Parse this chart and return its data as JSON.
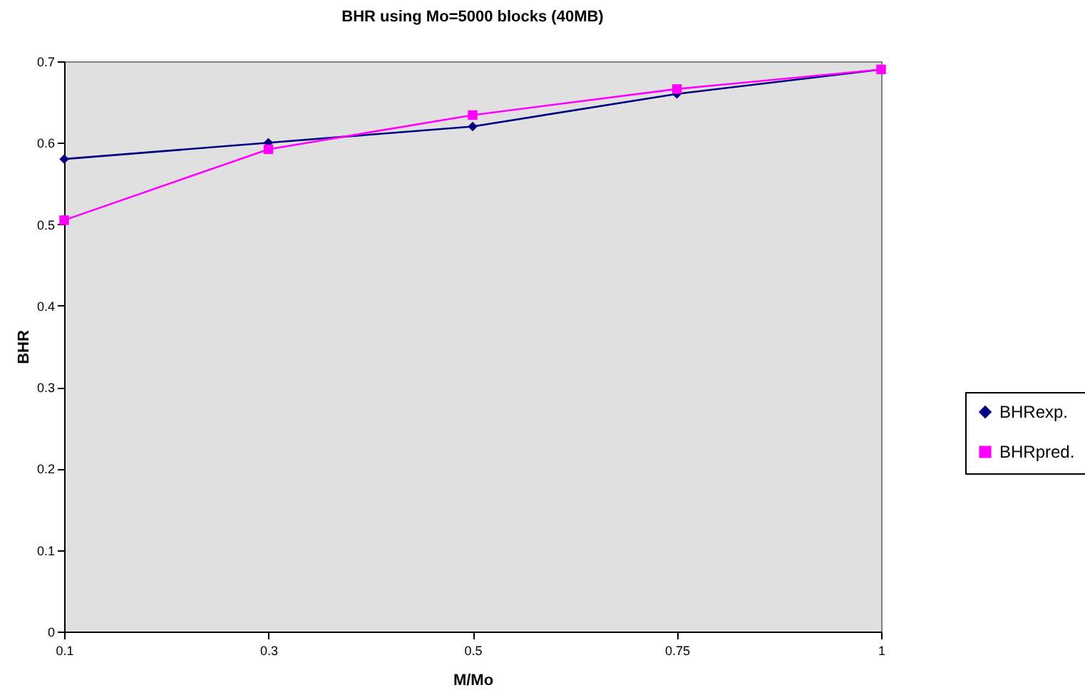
{
  "chart_data": {
    "type": "line",
    "title": "BHR using Mo=5000 blocks (40MB)",
    "xlabel": "M/Mo",
    "ylabel": "BHR",
    "categories": [
      "0.1",
      "0.3",
      "0.5",
      "0.75",
      "1"
    ],
    "series": [
      {
        "name": "BHRexp.",
        "color": "#000080",
        "marker": "diamond",
        "values": [
          0.58,
          0.6,
          0.62,
          0.66,
          0.69
        ]
      },
      {
        "name": "BHRpred.",
        "color": "#ff00ff",
        "marker": "square",
        "values": [
          0.505,
          0.592,
          0.634,
          0.666,
          0.69
        ]
      }
    ],
    "ylim": [
      0,
      0.7
    ],
    "yticks": [
      0,
      0.1,
      0.2,
      0.3,
      0.4,
      0.5,
      0.6,
      0.7
    ],
    "grid": false,
    "legend": "right"
  }
}
